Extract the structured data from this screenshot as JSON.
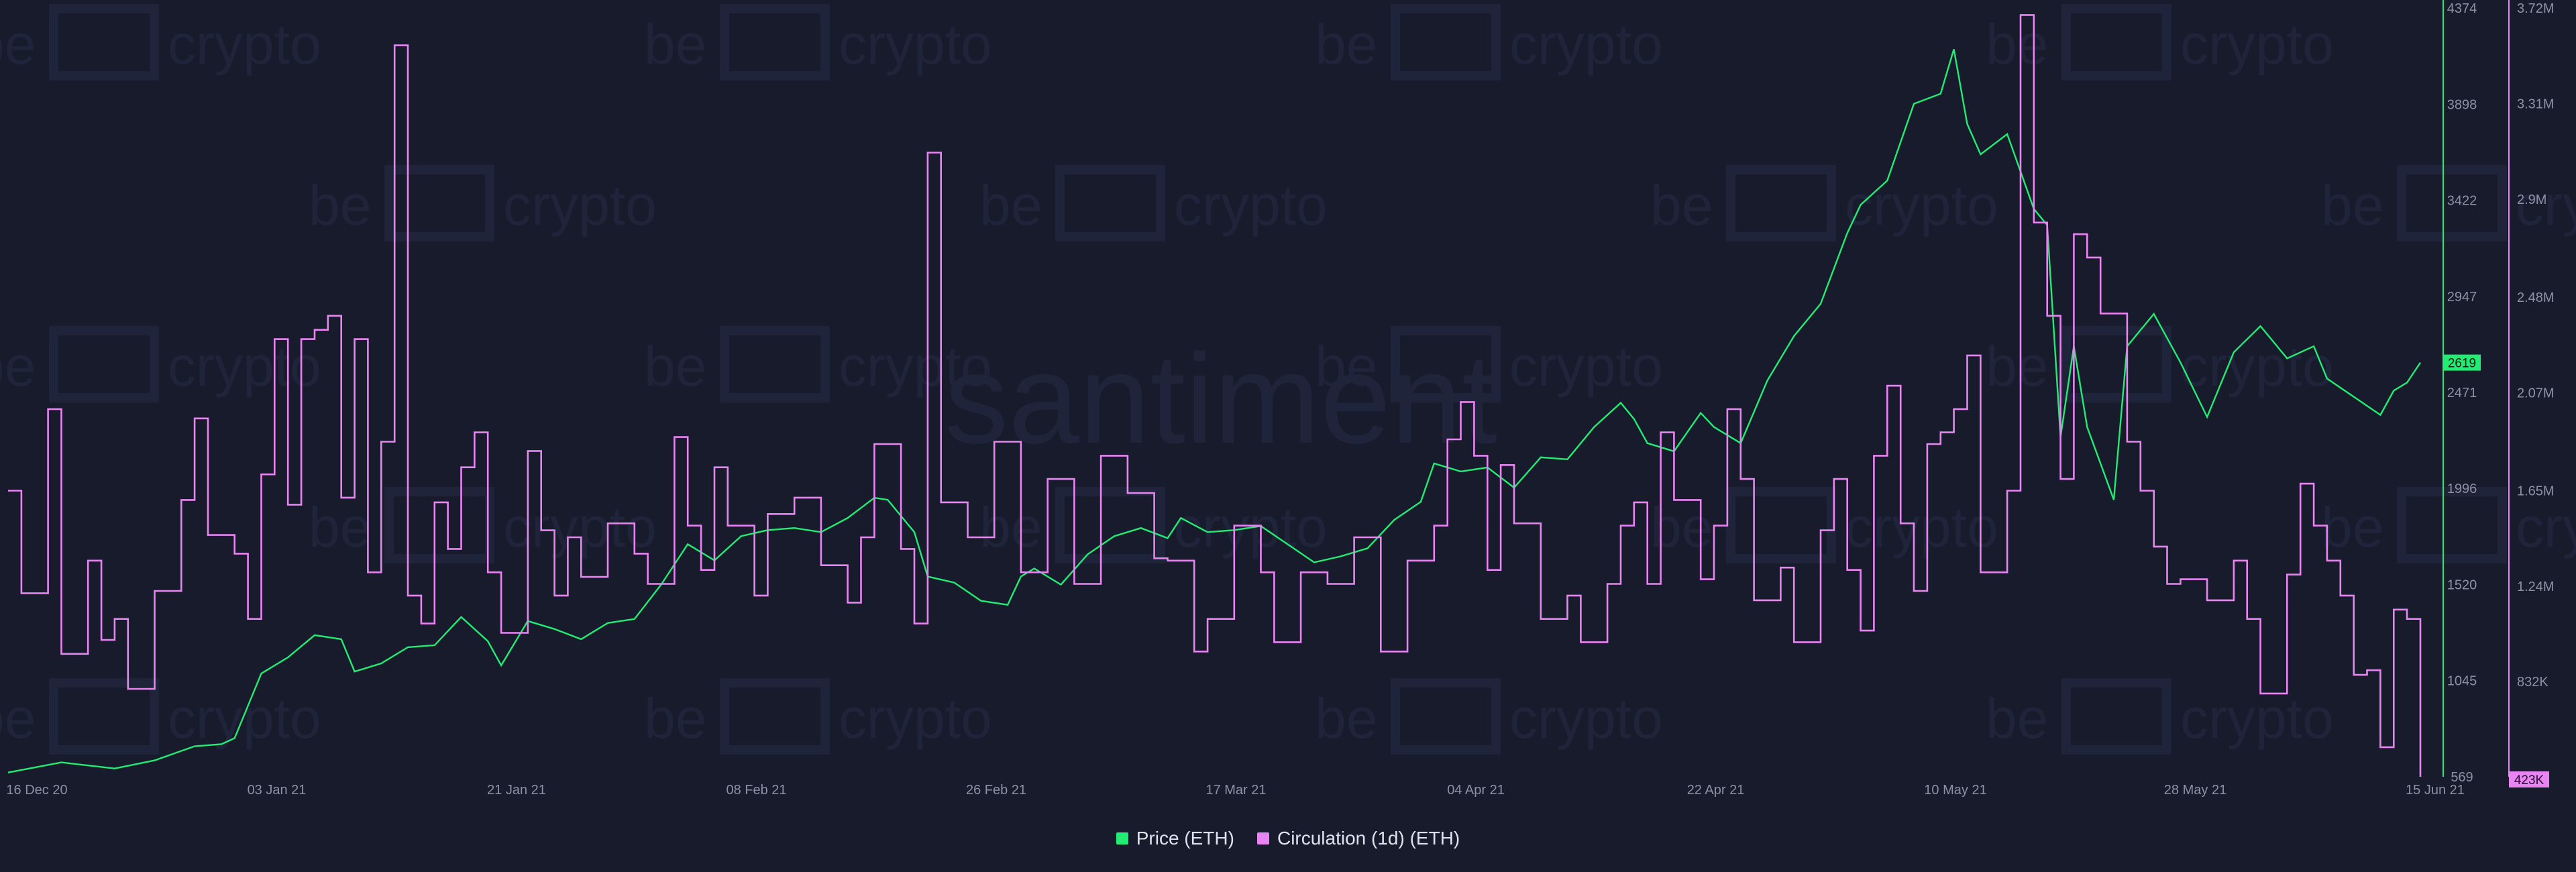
{
  "watermarks": {
    "brand_word_left": "be",
    "brand_word_right": "crypto",
    "center": "santiment"
  },
  "legend": {
    "price_label": "Price (ETH)",
    "circulation_label": "Circulation (1d) (ETH)"
  },
  "colors": {
    "background": "#181b2b",
    "price": "#22ec74",
    "circulation": "#e885f2",
    "axis_text": "#8d91a6",
    "price_badge_text": "#0d1a10",
    "circ_badge_text": "#2a0b33"
  },
  "chart_data": {
    "type": "line",
    "x_ticks": [
      "16 Dec 20",
      "03 Jan 21",
      "21 Jan 21",
      "08 Feb 21",
      "26 Feb 21",
      "17 Mar 21",
      "04 Apr 21",
      "22 Apr 21",
      "10 May 21",
      "28 May 21",
      "15 Jun 21"
    ],
    "x_range": [
      "2020-12-16",
      "2021-06-15"
    ],
    "price_axis": {
      "ticks": [
        "4374",
        "3898",
        "3422",
        "2947",
        "2471",
        "1996",
        "1520",
        "1045",
        "569"
      ],
      "ylim": [
        569,
        4374
      ],
      "current_label": "2619",
      "current_value": 2619
    },
    "circulation_axis": {
      "ticks": [
        "3.72M",
        "3.31M",
        "2.9M",
        "2.48M",
        "2.07M",
        "1.65M",
        "1.24M",
        "832K",
        "423K"
      ],
      "ylim": [
        423000,
        3720000
      ],
      "current_label": "423K",
      "current_value": 423000
    },
    "series": [
      {
        "name": "Price (ETH)",
        "axis": "price",
        "points": [
          [
            "2020-12-16",
            590
          ],
          [
            "2020-12-20",
            640
          ],
          [
            "2020-12-24",
            610
          ],
          [
            "2020-12-27",
            650
          ],
          [
            "2020-12-30",
            720
          ],
          [
            "2021-01-01",
            730
          ],
          [
            "2021-01-02",
            760
          ],
          [
            "2021-01-03",
            920
          ],
          [
            "2021-01-04",
            1080
          ],
          [
            "2021-01-06",
            1160
          ],
          [
            "2021-01-08",
            1270
          ],
          [
            "2021-01-10",
            1250
          ],
          [
            "2021-01-11",
            1090
          ],
          [
            "2021-01-13",
            1130
          ],
          [
            "2021-01-15",
            1210
          ],
          [
            "2021-01-17",
            1220
          ],
          [
            "2021-01-19",
            1360
          ],
          [
            "2021-01-21",
            1240
          ],
          [
            "2021-01-22",
            1120
          ],
          [
            "2021-01-24",
            1340
          ],
          [
            "2021-01-26",
            1300
          ],
          [
            "2021-01-28",
            1250
          ],
          [
            "2021-01-30",
            1330
          ],
          [
            "2021-02-01",
            1350
          ],
          [
            "2021-02-03",
            1520
          ],
          [
            "2021-02-05",
            1720
          ],
          [
            "2021-02-07",
            1640
          ],
          [
            "2021-02-09",
            1760
          ],
          [
            "2021-02-11",
            1790
          ],
          [
            "2021-02-13",
            1800
          ],
          [
            "2021-02-15",
            1780
          ],
          [
            "2021-02-17",
            1850
          ],
          [
            "2021-02-19",
            1950
          ],
          [
            "2021-02-20",
            1940
          ],
          [
            "2021-02-22",
            1780
          ],
          [
            "2021-02-23",
            1560
          ],
          [
            "2021-02-25",
            1530
          ],
          [
            "2021-02-27",
            1440
          ],
          [
            "2021-03-01",
            1420
          ],
          [
            "2021-03-02",
            1560
          ],
          [
            "2021-03-03",
            1600
          ],
          [
            "2021-03-05",
            1520
          ],
          [
            "2021-03-07",
            1670
          ],
          [
            "2021-03-09",
            1760
          ],
          [
            "2021-03-11",
            1800
          ],
          [
            "2021-03-13",
            1750
          ],
          [
            "2021-03-14",
            1850
          ],
          [
            "2021-03-16",
            1780
          ],
          [
            "2021-03-18",
            1790
          ],
          [
            "2021-03-20",
            1810
          ],
          [
            "2021-03-22",
            1720
          ],
          [
            "2021-03-24",
            1630
          ],
          [
            "2021-03-26",
            1660
          ],
          [
            "2021-03-28",
            1700
          ],
          [
            "2021-03-30",
            1840
          ],
          [
            "2021-04-01",
            1930
          ],
          [
            "2021-04-02",
            2120
          ],
          [
            "2021-04-04",
            2080
          ],
          [
            "2021-04-06",
            2100
          ],
          [
            "2021-04-08",
            2000
          ],
          [
            "2021-04-10",
            2150
          ],
          [
            "2021-04-12",
            2140
          ],
          [
            "2021-04-14",
            2300
          ],
          [
            "2021-04-16",
            2420
          ],
          [
            "2021-04-17",
            2340
          ],
          [
            "2021-04-18",
            2220
          ],
          [
            "2021-04-20",
            2180
          ],
          [
            "2021-04-22",
            2370
          ],
          [
            "2021-04-23",
            2300
          ],
          [
            "2021-04-25",
            2220
          ],
          [
            "2021-04-27",
            2530
          ],
          [
            "2021-04-29",
            2750
          ],
          [
            "2021-05-01",
            2910
          ],
          [
            "2021-05-03",
            3260
          ],
          [
            "2021-05-04",
            3400
          ],
          [
            "2021-05-06",
            3520
          ],
          [
            "2021-05-08",
            3900
          ],
          [
            "2021-05-10",
            3950
          ],
          [
            "2021-05-11",
            4170
          ],
          [
            "2021-05-12",
            3800
          ],
          [
            "2021-05-13",
            3650
          ],
          [
            "2021-05-15",
            3750
          ],
          [
            "2021-05-17",
            3380
          ],
          [
            "2021-05-18",
            3300
          ],
          [
            "2021-05-19",
            2250
          ],
          [
            "2021-05-20",
            2700
          ],
          [
            "2021-05-21",
            2300
          ],
          [
            "2021-05-23",
            1940
          ],
          [
            "2021-05-24",
            2700
          ],
          [
            "2021-05-26",
            2860
          ],
          [
            "2021-05-28",
            2620
          ],
          [
            "2021-05-30",
            2350
          ],
          [
            "2021-06-01",
            2670
          ],
          [
            "2021-06-03",
            2800
          ],
          [
            "2021-06-05",
            2640
          ],
          [
            "2021-06-07",
            2700
          ],
          [
            "2021-06-08",
            2540
          ],
          [
            "2021-06-10",
            2450
          ],
          [
            "2021-06-12",
            2360
          ],
          [
            "2021-06-13",
            2480
          ],
          [
            "2021-06-14",
            2520
          ],
          [
            "2021-06-15",
            2619
          ]
        ]
      },
      {
        "name": "Circulation (1d) (ETH)",
        "axis": "circulation",
        "step": true,
        "points": [
          [
            "2020-12-16",
            1650000
          ],
          [
            "2020-12-17",
            1210000
          ],
          [
            "2020-12-19",
            2000000
          ],
          [
            "2020-12-20",
            950000
          ],
          [
            "2020-12-22",
            1350000
          ],
          [
            "2020-12-23",
            1010000
          ],
          [
            "2020-12-24",
            1100000
          ],
          [
            "2020-12-25",
            800000
          ],
          [
            "2020-12-27",
            1220000
          ],
          [
            "2020-12-29",
            1610000
          ],
          [
            "2020-12-30",
            1960000
          ],
          [
            "2020-12-31",
            1460000
          ],
          [
            "2021-01-02",
            1380000
          ],
          [
            "2021-01-03",
            1100000
          ],
          [
            "2021-01-04",
            1720000
          ],
          [
            "2021-01-05",
            2300000
          ],
          [
            "2021-01-06",
            1590000
          ],
          [
            "2021-01-07",
            2300000
          ],
          [
            "2021-01-08",
            2340000
          ],
          [
            "2021-01-09",
            2400000
          ],
          [
            "2021-01-10",
            1620000
          ],
          [
            "2021-01-11",
            2300000
          ],
          [
            "2021-01-12",
            1300000
          ],
          [
            "2021-01-13",
            1860000
          ],
          [
            "2021-01-14",
            3560000
          ],
          [
            "2021-01-15",
            1200000
          ],
          [
            "2021-01-16",
            1080000
          ],
          [
            "2021-01-17",
            1600000
          ],
          [
            "2021-01-18",
            1400000
          ],
          [
            "2021-01-19",
            1750000
          ],
          [
            "2021-01-20",
            1900000
          ],
          [
            "2021-01-21",
            1300000
          ],
          [
            "2021-01-22",
            1040000
          ],
          [
            "2021-01-24",
            1820000
          ],
          [
            "2021-01-25",
            1480000
          ],
          [
            "2021-01-26",
            1200000
          ],
          [
            "2021-01-27",
            1450000
          ],
          [
            "2021-01-28",
            1280000
          ],
          [
            "2021-01-30",
            1510000
          ],
          [
            "2021-02-01",
            1380000
          ],
          [
            "2021-02-02",
            1250000
          ],
          [
            "2021-02-04",
            1880000
          ],
          [
            "2021-02-05",
            1500000
          ],
          [
            "2021-02-06",
            1310000
          ],
          [
            "2021-02-07",
            1750000
          ],
          [
            "2021-02-08",
            1500000
          ],
          [
            "2021-02-10",
            1200000
          ],
          [
            "2021-02-11",
            1550000
          ],
          [
            "2021-02-13",
            1620000
          ],
          [
            "2021-02-15",
            1330000
          ],
          [
            "2021-02-17",
            1170000
          ],
          [
            "2021-02-18",
            1450000
          ],
          [
            "2021-02-19",
            1850000
          ],
          [
            "2021-02-21",
            1400000
          ],
          [
            "2021-02-22",
            1080000
          ],
          [
            "2021-02-23",
            3100000
          ],
          [
            "2021-02-24",
            1600000
          ],
          [
            "2021-02-26",
            1450000
          ],
          [
            "2021-02-28",
            1860000
          ],
          [
            "2021-03-02",
            1300000
          ],
          [
            "2021-03-04",
            1700000
          ],
          [
            "2021-03-06",
            1250000
          ],
          [
            "2021-03-08",
            1800000
          ],
          [
            "2021-03-10",
            1640000
          ],
          [
            "2021-03-12",
            1360000
          ],
          [
            "2021-03-13",
            1350000
          ],
          [
            "2021-03-15",
            960000
          ],
          [
            "2021-03-16",
            1100000
          ],
          [
            "2021-03-18",
            1500000
          ],
          [
            "2021-03-20",
            1300000
          ],
          [
            "2021-03-21",
            1000000
          ],
          [
            "2021-03-23",
            1300000
          ],
          [
            "2021-03-25",
            1250000
          ],
          [
            "2021-03-27",
            1450000
          ],
          [
            "2021-03-29",
            960000
          ],
          [
            "2021-03-31",
            1350000
          ],
          [
            "2021-04-02",
            1500000
          ],
          [
            "2021-04-03",
            1870000
          ],
          [
            "2021-04-04",
            2030000
          ],
          [
            "2021-04-05",
            1800000
          ],
          [
            "2021-04-06",
            1310000
          ],
          [
            "2021-04-07",
            1760000
          ],
          [
            "2021-04-08",
            1510000
          ],
          [
            "2021-04-10",
            1100000
          ],
          [
            "2021-04-12",
            1200000
          ],
          [
            "2021-04-13",
            1000000
          ],
          [
            "2021-04-15",
            1250000
          ],
          [
            "2021-04-16",
            1500000
          ],
          [
            "2021-04-17",
            1600000
          ],
          [
            "2021-04-18",
            1250000
          ],
          [
            "2021-04-19",
            1900000
          ],
          [
            "2021-04-20",
            1610000
          ],
          [
            "2021-04-22",
            1270000
          ],
          [
            "2021-04-23",
            1500000
          ],
          [
            "2021-04-24",
            2000000
          ],
          [
            "2021-04-25",
            1700000
          ],
          [
            "2021-04-26",
            1180000
          ],
          [
            "2021-04-28",
            1320000
          ],
          [
            "2021-04-29",
            1000000
          ],
          [
            "2021-05-01",
            1480000
          ],
          [
            "2021-05-02",
            1700000
          ],
          [
            "2021-05-03",
            1310000
          ],
          [
            "2021-05-04",
            1050000
          ],
          [
            "2021-05-05",
            1800000
          ],
          [
            "2021-05-06",
            2100000
          ],
          [
            "2021-05-07",
            1510000
          ],
          [
            "2021-05-08",
            1220000
          ],
          [
            "2021-05-09",
            1850000
          ],
          [
            "2021-05-10",
            1900000
          ],
          [
            "2021-05-11",
            2000000
          ],
          [
            "2021-05-12",
            2230000
          ],
          [
            "2021-05-13",
            1300000
          ],
          [
            "2021-05-15",
            1650000
          ],
          [
            "2021-05-16",
            3690000
          ],
          [
            "2021-05-17",
            2800000
          ],
          [
            "2021-05-18",
            2400000
          ],
          [
            "2021-05-19",
            1700000
          ],
          [
            "2021-05-20",
            2750000
          ],
          [
            "2021-05-21",
            2650000
          ],
          [
            "2021-05-22",
            2410000
          ],
          [
            "2021-05-24",
            1860000
          ],
          [
            "2021-05-25",
            1650000
          ],
          [
            "2021-05-26",
            1410000
          ],
          [
            "2021-05-27",
            1250000
          ],
          [
            "2021-05-28",
            1270000
          ],
          [
            "2021-05-30",
            1180000
          ],
          [
            "2021-06-01",
            1350000
          ],
          [
            "2021-06-02",
            1100000
          ],
          [
            "2021-06-03",
            780000
          ],
          [
            "2021-06-05",
            1290000
          ],
          [
            "2021-06-06",
            1680000
          ],
          [
            "2021-06-07",
            1500000
          ],
          [
            "2021-06-08",
            1350000
          ],
          [
            "2021-06-09",
            1200000
          ],
          [
            "2021-06-10",
            860000
          ],
          [
            "2021-06-11",
            880000
          ],
          [
            "2021-06-12",
            550000
          ],
          [
            "2021-06-13",
            1140000
          ],
          [
            "2021-06-14",
            1100000
          ],
          [
            "2021-06-15",
            423000
          ]
        ]
      }
    ],
    "title": "",
    "xlabel": "",
    "ylabel": "",
    "grid": false,
    "legend_position": "bottom-center"
  }
}
